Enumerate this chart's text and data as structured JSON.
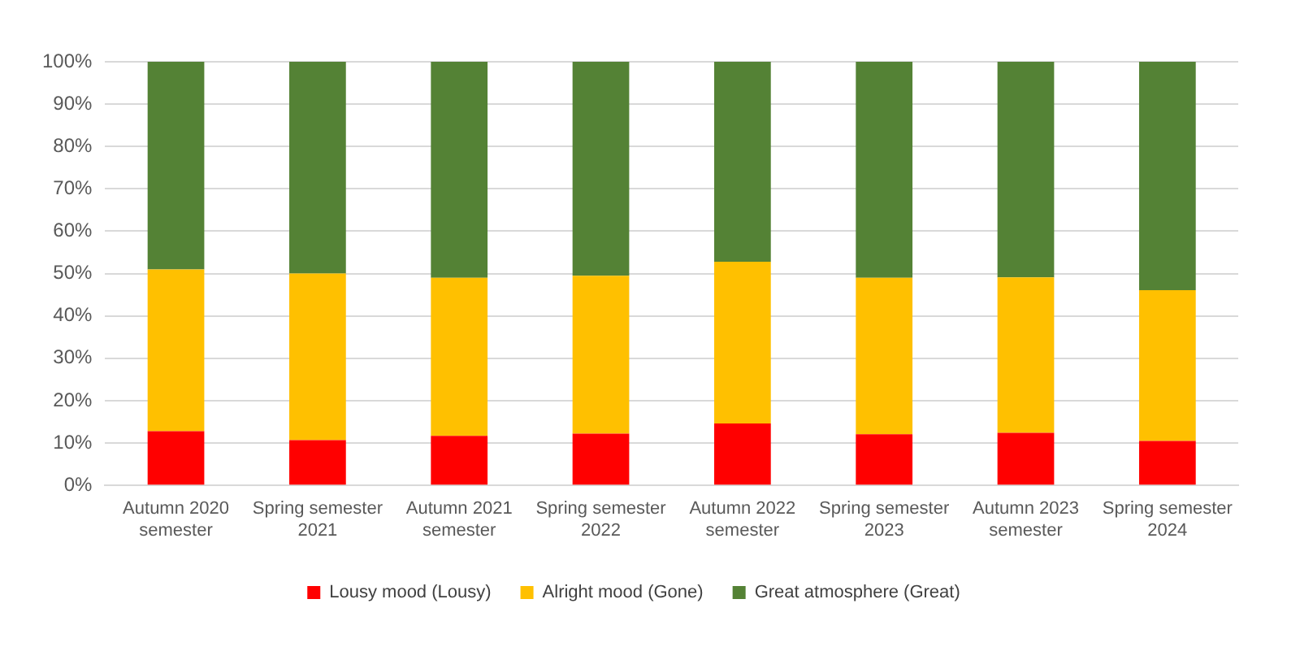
{
  "chart_data": {
    "type": "bar",
    "stacked": true,
    "categories": [
      "Autumn 2020 semester",
      "Spring semester 2021",
      "Autumn 2021 semester",
      "Spring semester 2022",
      "Autumn 2022 semester",
      "Spring semester 2023",
      "Autumn 2023 semester",
      "Spring semester 2024"
    ],
    "series": [
      {
        "name": "Lousy mood (Lousy)",
        "color": "#ff0000",
        "values": [
          12.8,
          10.7,
          11.7,
          12.2,
          14.6,
          12.1,
          12.4,
          10.5
        ]
      },
      {
        "name": "Alright mood (Gone)",
        "color": "#ffc000",
        "values": [
          38.2,
          39.3,
          37.3,
          37.3,
          38.2,
          36.9,
          36.7,
          35.6
        ]
      },
      {
        "name": "Great atmosphere (Great)",
        "color": "#548235",
        "values": [
          49.0,
          50.0,
          51.0,
          50.5,
          47.2,
          51.0,
          50.9,
          53.9
        ]
      }
    ],
    "ylim": [
      0,
      100
    ],
    "yticks": [
      {
        "value": 0,
        "label": "0%"
      },
      {
        "value": 10,
        "label": "10%"
      },
      {
        "value": 20,
        "label": "20%"
      },
      {
        "value": 30,
        "label": "30%"
      },
      {
        "value": 40,
        "label": "40%"
      },
      {
        "value": 50,
        "label": "50%"
      },
      {
        "value": 60,
        "label": "60%"
      },
      {
        "value": 70,
        "label": "70%"
      },
      {
        "value": 80,
        "label": "80%"
      },
      {
        "value": 90,
        "label": "90%"
      },
      {
        "value": 100,
        "label": "100%"
      }
    ],
    "grid": "y",
    "legend": "bottom"
  }
}
